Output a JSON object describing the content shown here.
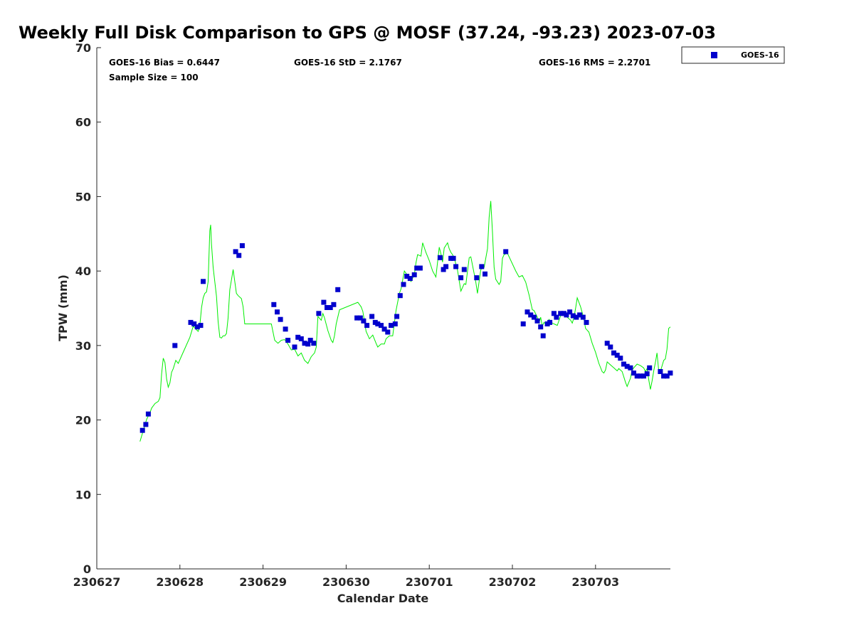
{
  "chart_data": {
    "type": "scatter",
    "title": "Weekly Full Disk Comparison to GPS @ MOSF (37.24, -93.23) 2023-07-03",
    "xlabel": "Calendar Date",
    "ylabel": "TPW (mm)",
    "xlim": [
      0,
      6.97
    ],
    "ylim": [
      0,
      70
    ],
    "x_tick_labels": [
      "230627",
      "230628",
      "230629",
      "230630",
      "230701",
      "230702",
      "230703"
    ],
    "y_ticks": [
      0,
      10,
      20,
      30,
      40,
      50,
      60,
      70
    ],
    "grid": false,
    "legend": {
      "position": "outside-top-right",
      "entries": [
        "GOES-16"
      ]
    },
    "stats": {
      "bias": "GOES-16 Bias = 0.6447",
      "std": "GOES-16 StD = 2.1767",
      "rms": "GOES-16 RMS = 2.2701",
      "sample": "Sample Size = 100"
    },
    "colors": {
      "goes": "#0000cc",
      "gps": "#00ee00"
    },
    "series": [
      {
        "name": "GOES-16",
        "type": "scatter",
        "points": [
          [
            0.55,
            18.6
          ],
          [
            0.59,
            19.4
          ],
          [
            0.62,
            20.8
          ],
          [
            0.94,
            30.0
          ],
          [
            1.13,
            33.1
          ],
          [
            1.17,
            32.9
          ],
          [
            1.21,
            32.5
          ],
          [
            1.25,
            32.7
          ],
          [
            1.28,
            38.6
          ],
          [
            1.67,
            42.6
          ],
          [
            1.71,
            42.1
          ],
          [
            1.75,
            43.4
          ],
          [
            2.13,
            35.5
          ],
          [
            2.17,
            34.5
          ],
          [
            2.21,
            33.5
          ],
          [
            2.27,
            32.2
          ],
          [
            2.3,
            30.7
          ],
          [
            2.38,
            29.8
          ],
          [
            2.42,
            31.1
          ],
          [
            2.46,
            30.9
          ],
          [
            2.5,
            30.3
          ],
          [
            2.54,
            30.2
          ],
          [
            2.57,
            30.7
          ],
          [
            2.61,
            30.3
          ],
          [
            2.67,
            34.3
          ],
          [
            2.73,
            35.8
          ],
          [
            2.77,
            35.1
          ],
          [
            2.81,
            35.1
          ],
          [
            2.85,
            35.5
          ],
          [
            2.9,
            37.5
          ],
          [
            3.13,
            33.7
          ],
          [
            3.17,
            33.7
          ],
          [
            3.21,
            33.3
          ],
          [
            3.25,
            32.7
          ],
          [
            3.31,
            33.9
          ],
          [
            3.35,
            33.1
          ],
          [
            3.38,
            32.9
          ],
          [
            3.42,
            32.7
          ],
          [
            3.46,
            32.2
          ],
          [
            3.5,
            31.8
          ],
          [
            3.54,
            32.7
          ],
          [
            3.59,
            32.9
          ],
          [
            3.61,
            33.9
          ],
          [
            3.65,
            36.7
          ],
          [
            3.69,
            38.2
          ],
          [
            3.73,
            39.3
          ],
          [
            3.77,
            39.0
          ],
          [
            3.82,
            39.5
          ],
          [
            3.85,
            40.4
          ],
          [
            3.89,
            40.4
          ],
          [
            4.13,
            41.8
          ],
          [
            4.17,
            40.2
          ],
          [
            4.2,
            40.6
          ],
          [
            4.26,
            41.7
          ],
          [
            4.29,
            41.7
          ],
          [
            4.32,
            40.6
          ],
          [
            4.38,
            39.1
          ],
          [
            4.42,
            40.2
          ],
          [
            4.57,
            39.1
          ],
          [
            4.63,
            40.6
          ],
          [
            4.67,
            39.6
          ],
          [
            4.92,
            42.6
          ],
          [
            5.13,
            32.9
          ],
          [
            5.18,
            34.5
          ],
          [
            5.22,
            34.1
          ],
          [
            5.26,
            33.8
          ],
          [
            5.3,
            33.3
          ],
          [
            5.34,
            32.5
          ],
          [
            5.37,
            31.3
          ],
          [
            5.42,
            32.9
          ],
          [
            5.45,
            33.1
          ],
          [
            5.5,
            34.3
          ],
          [
            5.53,
            33.8
          ],
          [
            5.58,
            34.3
          ],
          [
            5.62,
            34.3
          ],
          [
            5.65,
            34.1
          ],
          [
            5.69,
            34.5
          ],
          [
            5.73,
            34.0
          ],
          [
            5.77,
            33.8
          ],
          [
            5.81,
            34.1
          ],
          [
            5.85,
            33.8
          ],
          [
            5.89,
            33.1
          ],
          [
            6.14,
            30.3
          ],
          [
            6.18,
            29.8
          ],
          [
            6.22,
            29.0
          ],
          [
            6.26,
            28.7
          ],
          [
            6.3,
            28.3
          ],
          [
            6.34,
            27.5
          ],
          [
            6.38,
            27.2
          ],
          [
            6.42,
            27.0
          ],
          [
            6.46,
            26.3
          ],
          [
            6.5,
            25.9
          ],
          [
            6.54,
            25.9
          ],
          [
            6.58,
            25.9
          ],
          [
            6.62,
            26.2
          ],
          [
            6.65,
            27.0
          ],
          [
            6.78,
            26.5
          ],
          [
            6.82,
            25.9
          ],
          [
            6.86,
            25.9
          ],
          [
            6.9,
            26.3
          ]
        ]
      },
      {
        "name": "GPS",
        "type": "line",
        "points": [
          [
            0.52,
            17.1
          ],
          [
            0.56,
            18.6
          ],
          [
            0.6,
            20.1
          ],
          [
            0.64,
            21.0
          ],
          [
            0.66,
            21.6
          ],
          [
            0.7,
            22.2
          ],
          [
            0.74,
            22.5
          ],
          [
            0.76,
            23.0
          ],
          [
            0.78,
            26.2
          ],
          [
            0.8,
            28.3
          ],
          [
            0.82,
            27.7
          ],
          [
            0.84,
            25.5
          ],
          [
            0.86,
            24.4
          ],
          [
            0.88,
            25.0
          ],
          [
            0.9,
            26.4
          ],
          [
            0.92,
            26.9
          ],
          [
            0.95,
            28.0
          ],
          [
            0.98,
            27.6
          ],
          [
            1.02,
            28.6
          ],
          [
            1.06,
            29.6
          ],
          [
            1.12,
            31.1
          ],
          [
            1.16,
            32.6
          ],
          [
            1.2,
            32.1
          ],
          [
            1.22,
            31.9
          ],
          [
            1.24,
            32.7
          ],
          [
            1.26,
            35.1
          ],
          [
            1.28,
            36.4
          ],
          [
            1.3,
            37.0
          ],
          [
            1.32,
            37.2
          ],
          [
            1.34,
            38.6
          ],
          [
            1.36,
            45.4
          ],
          [
            1.37,
            46.2
          ],
          [
            1.38,
            43.6
          ],
          [
            1.4,
            40.5
          ],
          [
            1.42,
            38.5
          ],
          [
            1.44,
            36.6
          ],
          [
            1.46,
            33.2
          ],
          [
            1.48,
            31.1
          ],
          [
            1.5,
            31.0
          ],
          [
            1.52,
            31.3
          ],
          [
            1.54,
            31.3
          ],
          [
            1.56,
            31.6
          ],
          [
            1.58,
            33.7
          ],
          [
            1.6,
            37.5
          ],
          [
            1.62,
            38.8
          ],
          [
            1.64,
            40.2
          ],
          [
            1.66,
            38.6
          ],
          [
            1.68,
            37.0
          ],
          [
            1.7,
            36.7
          ],
          [
            1.74,
            36.3
          ],
          [
            1.76,
            35.2
          ],
          [
            1.78,
            32.9
          ],
          [
            2.1,
            32.9
          ],
          [
            2.14,
            30.7
          ],
          [
            2.18,
            30.3
          ],
          [
            2.22,
            30.7
          ],
          [
            2.26,
            30.8
          ],
          [
            2.3,
            30.2
          ],
          [
            2.34,
            29.4
          ],
          [
            2.38,
            29.5
          ],
          [
            2.42,
            28.6
          ],
          [
            2.46,
            29.0
          ],
          [
            2.5,
            28.0
          ],
          [
            2.54,
            27.6
          ],
          [
            2.58,
            28.5
          ],
          [
            2.62,
            29.0
          ],
          [
            2.64,
            29.8
          ],
          [
            2.66,
            33.9
          ],
          [
            2.7,
            33.4
          ],
          [
            2.72,
            34.3
          ],
          [
            2.74,
            33.7
          ],
          [
            2.78,
            32.0
          ],
          [
            2.82,
            30.7
          ],
          [
            2.84,
            30.4
          ],
          [
            2.86,
            31.3
          ],
          [
            2.88,
            32.9
          ],
          [
            2.92,
            34.8
          ],
          [
            3.14,
            35.8
          ],
          [
            3.18,
            35.2
          ],
          [
            3.2,
            34.6
          ],
          [
            3.24,
            31.9
          ],
          [
            3.28,
            30.9
          ],
          [
            3.32,
            31.4
          ],
          [
            3.36,
            30.3
          ],
          [
            3.38,
            29.8
          ],
          [
            3.42,
            30.2
          ],
          [
            3.46,
            30.2
          ],
          [
            3.48,
            30.9
          ],
          [
            3.52,
            31.3
          ],
          [
            3.56,
            31.3
          ],
          [
            3.6,
            34.7
          ],
          [
            3.64,
            37.0
          ],
          [
            3.66,
            37.6
          ],
          [
            3.7,
            40.0
          ],
          [
            3.74,
            39.4
          ],
          [
            3.78,
            38.6
          ],
          [
            3.82,
            39.5
          ],
          [
            3.84,
            41.1
          ],
          [
            3.86,
            42.2
          ],
          [
            3.9,
            42.0
          ],
          [
            3.92,
            43.8
          ],
          [
            3.96,
            42.5
          ],
          [
            4.0,
            41.4
          ],
          [
            4.04,
            40.0
          ],
          [
            4.08,
            39.2
          ],
          [
            4.12,
            43.2
          ],
          [
            4.14,
            42.3
          ],
          [
            4.16,
            41.2
          ],
          [
            4.18,
            43.1
          ],
          [
            4.22,
            43.8
          ],
          [
            4.24,
            43.0
          ],
          [
            4.26,
            42.5
          ],
          [
            4.28,
            42.2
          ],
          [
            4.3,
            41.8
          ],
          [
            4.34,
            40.1
          ],
          [
            4.38,
            37.3
          ],
          [
            4.42,
            38.3
          ],
          [
            4.44,
            38.2
          ],
          [
            4.48,
            41.8
          ],
          [
            4.5,
            41.9
          ],
          [
            4.52,
            40.8
          ],
          [
            4.56,
            38.5
          ],
          [
            4.58,
            37.0
          ],
          [
            4.62,
            40.2
          ],
          [
            4.66,
            40.5
          ],
          [
            4.7,
            43.0
          ],
          [
            4.72,
            47.2
          ],
          [
            4.74,
            49.4
          ],
          [
            4.76,
            45.2
          ],
          [
            4.78,
            40.5
          ],
          [
            4.8,
            38.9
          ],
          [
            4.84,
            38.2
          ],
          [
            4.86,
            38.6
          ],
          [
            4.88,
            41.7
          ],
          [
            4.9,
            42.2
          ],
          [
            4.94,
            42.4
          ],
          [
            5.04,
            40.0
          ],
          [
            5.08,
            39.2
          ],
          [
            5.12,
            39.4
          ],
          [
            5.16,
            38.5
          ],
          [
            5.2,
            36.8
          ],
          [
            5.24,
            34.8
          ],
          [
            5.26,
            34.7
          ],
          [
            5.3,
            33.8
          ],
          [
            5.32,
            33.0
          ],
          [
            5.34,
            33.8
          ],
          [
            5.36,
            32.6
          ],
          [
            5.38,
            33.1
          ],
          [
            5.42,
            32.7
          ],
          [
            5.44,
            33.5
          ],
          [
            5.48,
            33.0
          ],
          [
            5.52,
            32.8
          ],
          [
            5.54,
            32.7
          ],
          [
            5.58,
            34.0
          ],
          [
            5.62,
            34.4
          ],
          [
            5.64,
            34.0
          ],
          [
            5.66,
            33.8
          ],
          [
            5.7,
            33.4
          ],
          [
            5.72,
            33.0
          ],
          [
            5.74,
            33.7
          ],
          [
            5.76,
            35.0
          ],
          [
            5.78,
            36.4
          ],
          [
            5.82,
            35.2
          ],
          [
            5.86,
            33.6
          ],
          [
            5.88,
            32.3
          ],
          [
            5.92,
            31.8
          ],
          [
            5.96,
            30.3
          ],
          [
            6.0,
            29.1
          ],
          [
            6.04,
            27.6
          ],
          [
            6.08,
            26.5
          ],
          [
            6.1,
            26.3
          ],
          [
            6.12,
            26.7
          ],
          [
            6.14,
            27.8
          ],
          [
            6.18,
            27.4
          ],
          [
            6.22,
            27.0
          ],
          [
            6.26,
            26.6
          ],
          [
            6.28,
            26.9
          ],
          [
            6.32,
            26.5
          ],
          [
            6.36,
            25.1
          ],
          [
            6.38,
            24.5
          ],
          [
            6.42,
            25.6
          ],
          [
            6.44,
            26.7
          ],
          [
            6.46,
            27.0
          ],
          [
            6.5,
            27.5
          ],
          [
            6.54,
            27.3
          ],
          [
            6.58,
            27.0
          ],
          [
            6.6,
            26.5
          ],
          [
            6.62,
            26.9
          ],
          [
            6.64,
            25.4
          ],
          [
            6.66,
            24.1
          ],
          [
            6.68,
            25.2
          ],
          [
            6.7,
            26.6
          ],
          [
            6.72,
            27.7
          ],
          [
            6.74,
            29.0
          ],
          [
            6.76,
            26.6
          ],
          [
            6.78,
            26.5
          ],
          [
            6.82,
            28.0
          ],
          [
            6.84,
            28.2
          ],
          [
            6.86,
            29.5
          ],
          [
            6.88,
            32.3
          ],
          [
            6.9,
            32.5
          ]
        ]
      }
    ]
  }
}
